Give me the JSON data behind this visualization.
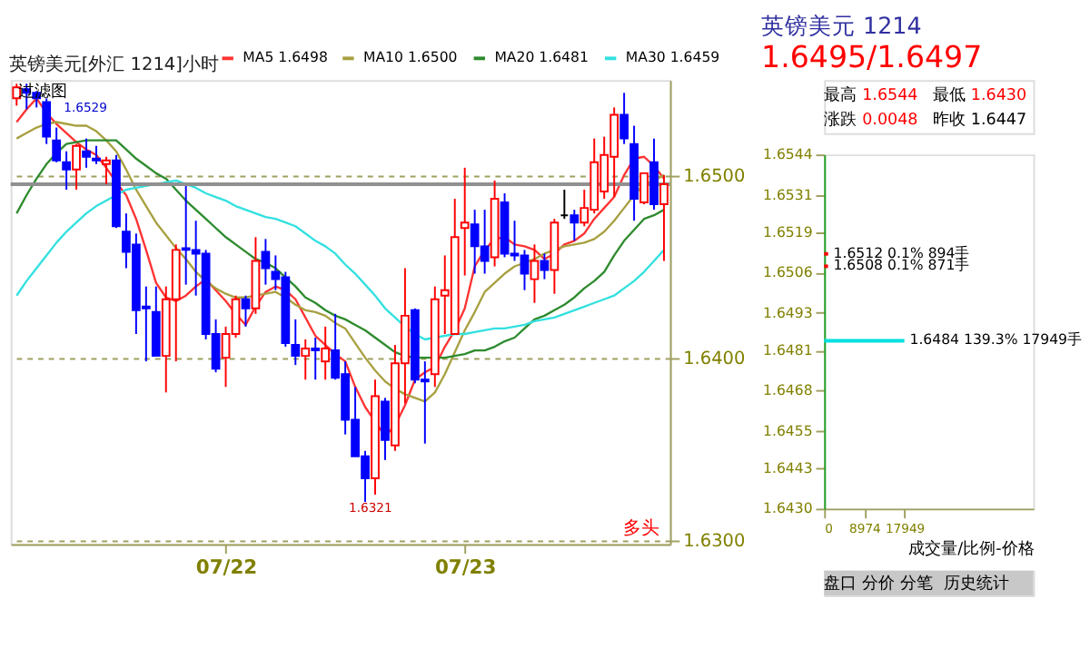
{
  "chart_data": [
    {
      "type": "candlestick",
      "title": "英镑美元[外汇 1214]小时",
      "categories": [
        null,
        null,
        null,
        null,
        null,
        null,
        null,
        null,
        null,
        null,
        null,
        null,
        null,
        null,
        null,
        null,
        null,
        null,
        null,
        null,
        null,
        "07/22",
        null,
        null,
        null,
        null,
        null,
        null,
        null,
        null,
        null,
        null,
        null,
        null,
        null,
        null,
        null,
        null,
        null,
        null,
        null,
        null,
        null,
        null,
        null,
        "07/23",
        null,
        null,
        null,
        null,
        null,
        null,
        null,
        null,
        null,
        null,
        null,
        null,
        null,
        null,
        null,
        null,
        null,
        null,
        null,
        null
      ],
      "ohlc": [
        [
          1.6542,
          1.655,
          1.6538,
          1.6548
        ],
        [
          1.6547,
          1.655,
          1.6536,
          1.6545
        ],
        [
          1.6545,
          1.6546,
          1.6537,
          1.6542
        ],
        [
          1.654,
          1.6542,
          1.6517,
          1.6521
        ],
        [
          1.6519,
          1.6526,
          1.6507,
          1.6508
        ],
        [
          1.6507,
          1.6513,
          1.6492,
          1.6503
        ],
        [
          1.6503,
          1.6517,
          1.6492,
          1.6516
        ],
        [
          1.6513,
          1.652,
          1.6504,
          1.651
        ],
        [
          1.6509,
          1.6516,
          1.6506,
          1.6508
        ],
        [
          1.6506,
          1.651,
          1.6495,
          1.6508
        ],
        [
          1.6508,
          1.6511,
          1.6471,
          1.6472
        ],
        [
          1.6469,
          1.6479,
          1.6449,
          1.6458
        ],
        [
          1.6462,
          1.6468,
          1.6413,
          1.6426
        ],
        [
          1.6428,
          1.6439,
          1.6398,
          1.6427
        ],
        [
          1.6425,
          1.6439,
          1.6401,
          1.6401
        ],
        [
          1.6401,
          1.6439,
          1.6381,
          1.6432
        ],
        [
          1.6432,
          1.6462,
          1.6398,
          1.6459
        ],
        [
          1.646,
          1.6494,
          1.644,
          1.6459
        ],
        [
          1.6459,
          1.6475,
          1.6434,
          1.6457
        ],
        [
          1.6457,
          1.6459,
          1.641,
          1.6413
        ],
        [
          1.6413,
          1.6421,
          1.6392,
          1.6394
        ],
        [
          1.64,
          1.6417,
          1.6384,
          1.6413
        ],
        [
          1.6413,
          1.6434,
          1.6411,
          1.6432
        ],
        [
          1.6432,
          1.6434,
          1.6417,
          1.6427
        ],
        [
          1.6427,
          1.6466,
          1.6424,
          1.6453
        ],
        [
          1.6458,
          1.6465,
          1.644,
          1.6449
        ],
        [
          1.6447,
          1.6456,
          1.6437,
          1.6443
        ],
        [
          1.6444,
          1.6447,
          1.6406,
          1.6408
        ],
        [
          1.6407,
          1.6421,
          1.6396,
          1.6401
        ],
        [
          1.6401,
          1.641,
          1.6388,
          1.6405
        ],
        [
          1.6405,
          1.6411,
          1.6388,
          1.6404
        ],
        [
          1.6398,
          1.6417,
          1.6388,
          1.6405
        ],
        [
          1.6404,
          1.6424,
          1.6388,
          1.6389
        ],
        [
          1.6391,
          1.6398,
          1.6358,
          1.6366
        ],
        [
          1.6366,
          1.6384,
          1.6346,
          1.6346
        ],
        [
          1.6346,
          1.6349,
          1.6321,
          1.6334
        ],
        [
          1.6334,
          1.6388,
          1.6325,
          1.6379
        ],
        [
          1.6376,
          1.6378,
          1.6344,
          1.6355
        ],
        [
          1.6352,
          1.6407,
          1.6349,
          1.6397
        ],
        [
          1.6397,
          1.6449,
          1.6375,
          1.6423
        ],
        [
          1.6426,
          1.6427,
          1.6386,
          1.6388
        ],
        [
          1.6388,
          1.6398,
          1.6353,
          1.6387
        ],
        [
          1.6391,
          1.6439,
          1.6384,
          1.6432
        ],
        [
          1.6434,
          1.6456,
          1.6413,
          1.6437
        ],
        [
          1.6413,
          1.6487,
          1.6413,
          1.6466
        ],
        [
          1.6471,
          1.6504,
          1.6445,
          1.6474
        ],
        [
          1.6473,
          1.6481,
          1.6446,
          1.6461
        ],
        [
          1.6461,
          1.6481,
          1.6446,
          1.6453
        ],
        [
          1.6455,
          1.6497,
          1.645,
          1.6487
        ],
        [
          1.6485,
          1.649,
          1.6455,
          1.6457
        ],
        [
          1.6457,
          1.6475,
          1.6453,
          1.6456
        ],
        [
          1.6456,
          1.6459,
          1.6437,
          1.6446
        ],
        [
          1.6443,
          1.6462,
          1.643,
          1.6453
        ],
        [
          1.6453,
          1.6457,
          1.6443,
          1.6448
        ],
        [
          1.6448,
          1.6476,
          1.6435,
          1.6474
        ],
        [
          1.6478,
          1.6492,
          1.6476,
          1.6478
        ],
        [
          1.6478,
          1.6481,
          1.6464,
          1.6474
        ],
        [
          1.6474,
          1.6492,
          1.6472,
          1.6482
        ],
        [
          1.6481,
          1.652,
          1.6479,
          1.6507
        ],
        [
          1.6491,
          1.6521,
          1.6487,
          1.6511
        ],
        [
          1.651,
          1.6537,
          1.6488,
          1.6533
        ],
        [
          1.6533,
          1.6545,
          1.6517,
          1.652
        ],
        [
          1.6517,
          1.6527,
          1.6475,
          1.6487
        ],
        [
          1.6485,
          1.6501,
          1.6484,
          1.6501
        ],
        [
          1.6507,
          1.652,
          1.6481,
          1.6484
        ],
        [
          1.6484,
          1.65,
          1.6453,
          1.6495
        ]
      ],
      "colors": [
        "#ff0000",
        "#0000ff",
        "#0000ff",
        "#0000ff",
        "#0000ff",
        "#0000ff",
        "#ff0000",
        "#0000ff",
        "#0000ff",
        "#ff0000",
        "#0000ff",
        "#0000ff",
        "#0000ff",
        "#0000ff",
        "#0000ff",
        "#ff0000",
        "#ff0000",
        "#0000ff",
        "#0000ff",
        "#0000ff",
        "#0000ff",
        "#ff0000",
        "#ff0000",
        "#0000ff",
        "#ff0000",
        "#0000ff",
        "#0000ff",
        "#0000ff",
        "#0000ff",
        "#ff0000",
        "#0000ff",
        "#ff0000",
        "#0000ff",
        "#0000ff",
        "#0000ff",
        "#0000ff",
        "#ff0000",
        "#0000ff",
        "#ff0000",
        "#ff0000",
        "#0000ff",
        "#0000ff",
        "#ff0000",
        "#ff0000",
        "#ff0000",
        "#ff0000",
        "#0000ff",
        "#0000ff",
        "#ff0000",
        "#0000ff",
        "#0000ff",
        "#0000ff",
        "#ff0000",
        "#0000ff",
        "#ff0000",
        "#000000",
        "#0000ff",
        "#ff0000",
        "#ff0000",
        "#ff0000",
        "#ff0000",
        "#0000ff",
        "#0000ff",
        "#ff0000",
        "#0000ff",
        "#ff0000"
      ],
      "series": [
        {
          "name": "MA5 1.6498",
          "type": "line",
          "color": "#ff3333",
          "values": [
            1.6529,
            1.6536,
            1.6542,
            1.6534,
            1.6528,
            1.6523,
            1.6518,
            1.6514,
            1.6511,
            1.6504,
            1.6496,
            1.6489,
            1.6476,
            1.6459,
            1.6441,
            1.6433,
            1.6431,
            1.6434,
            1.6439,
            1.6443,
            1.6437,
            1.6431,
            1.6424,
            1.6418,
            1.6428,
            1.6436,
            1.6439,
            1.6437,
            1.6432,
            1.6422,
            1.6412,
            1.6407,
            1.6402,
            1.6398,
            1.6384,
            1.6373,
            1.6365,
            1.6357,
            1.6363,
            1.6374,
            1.6388,
            1.6392,
            1.6395,
            1.6406,
            1.6415,
            1.6427,
            1.645,
            1.6459,
            1.6465,
            1.6466,
            1.6462,
            1.6461,
            1.6459,
            1.6454,
            1.6457,
            1.6462,
            1.6464,
            1.6468,
            1.6476,
            1.6482,
            1.6488,
            1.65,
            1.6509,
            1.651,
            1.6505,
            1.6498
          ]
        },
        {
          "name": "MA10 1.6500",
          "type": "line",
          "color": "#a8a040",
          "values": [
            1.652,
            1.6523,
            1.6526,
            1.6528,
            1.6529,
            1.6528,
            1.6527,
            1.6527,
            1.6524,
            1.6519,
            1.6513,
            1.6503,
            1.6492,
            1.6483,
            1.6474,
            1.6467,
            1.646,
            1.6454,
            1.6447,
            1.6442,
            1.6438,
            1.6435,
            1.6433,
            1.6433,
            1.6434,
            1.6435,
            1.6436,
            1.6433,
            1.6429,
            1.6426,
            1.6425,
            1.6423,
            1.6419,
            1.6416,
            1.6408,
            1.64,
            1.6393,
            1.6387,
            1.6383,
            1.638,
            1.6378,
            1.6376,
            1.6381,
            1.6391,
            1.6403,
            1.6415,
            1.6425,
            1.6436,
            1.6441,
            1.6446,
            1.645,
            1.6452,
            1.6454,
            1.6457,
            1.6459,
            1.6461,
            1.6462,
            1.6463,
            1.6465,
            1.6469,
            1.6475,
            1.6482,
            1.6489,
            1.6495,
            1.6497,
            1.65
          ]
        },
        {
          "name": "MA20 1.6481",
          "type": "line",
          "color": "#2e8b2e",
          "values": [
            1.6479,
            1.6489,
            1.6498,
            1.6506,
            1.6512,
            1.6517,
            1.6518,
            1.6519,
            1.6519,
            1.6519,
            1.6519,
            1.6514,
            1.6509,
            1.6505,
            1.6501,
            1.6498,
            1.6492,
            1.6486,
            1.6481,
            1.6476,
            1.6471,
            1.6466,
            1.6462,
            1.6458,
            1.6454,
            1.6452,
            1.6449,
            1.6444,
            1.6439,
            1.6433,
            1.643,
            1.6426,
            1.6423,
            1.6421,
            1.6418,
            1.6415,
            1.6411,
            1.6407,
            1.6403,
            1.6401,
            1.64,
            1.64,
            1.64,
            1.64,
            1.6401,
            1.6402,
            1.6404,
            1.6404,
            1.6406,
            1.6409,
            1.6411,
            1.6416,
            1.6421,
            1.6423,
            1.6426,
            1.6429,
            1.6433,
            1.6438,
            1.6442,
            1.6447,
            1.6456,
            1.6464,
            1.647,
            1.6476,
            1.6478,
            1.6481
          ]
        },
        {
          "name": "MA30 1.6459",
          "type": "line",
          "color": "#33e0e0",
          "values": [
            1.6434,
            1.6442,
            1.6449,
            1.6456,
            1.6463,
            1.6469,
            1.6474,
            1.6479,
            1.6483,
            1.6486,
            1.6489,
            1.6492,
            1.6493,
            1.6494,
            1.6495,
            1.6496,
            1.6497,
            1.6495,
            1.6493,
            1.649,
            1.6488,
            1.6486,
            1.6483,
            1.6481,
            1.6479,
            1.6477,
            1.6476,
            1.6474,
            1.6472,
            1.6468,
            1.6464,
            1.6461,
            1.6457,
            1.6451,
            1.6446,
            1.644,
            1.6434,
            1.6427,
            1.6422,
            1.6417,
            1.6413,
            1.641,
            1.6411,
            1.6412,
            1.6413,
            1.6413,
            1.6414,
            1.6415,
            1.6416,
            1.6416,
            1.6417,
            1.6418,
            1.642,
            1.6421,
            1.6422,
            1.6424,
            1.6426,
            1.6428,
            1.643,
            1.6432,
            1.6434,
            1.6438,
            1.6442,
            1.6447,
            1.6453,
            1.6459
          ]
        }
      ],
      "ylim": [
        1.6298,
        1.6552
      ],
      "yticks": [
        {
          "value": 1.63,
          "label": "1.6300"
        },
        {
          "value": 1.64,
          "label": "1.6400"
        },
        {
          "value": 1.65,
          "label": "1.6500"
        }
      ],
      "grid": "y",
      "legend": "top",
      "line_style": "solid",
      "ref_lines": [
        {
          "axis": "y",
          "value": 1.6495,
          "color": "#909090"
        }
      ],
      "annotations": [
        "过滤图",
        "多头",
        "1.6529",
        "1.6321"
      ]
    },
    {
      "type": "bar",
      "orientation": "horizontal",
      "title": "英镑美元 1214",
      "subtitle": "1.6495/1.6497",
      "x": [
        1.6512,
        1.6508,
        1.6484
      ],
      "values": [
        894,
        871,
        17949
      ],
      "colors": [
        "#ff0000",
        "#ff0000",
        "#00e0e0"
      ],
      "value_labels": [
        "1.6512 0.1% 894手",
        "1.6508 0.1% 871手",
        "1.6484 139.3% 17949手"
      ],
      "xlim": [
        0,
        46800
      ],
      "xticks": [
        0,
        8974,
        17949
      ],
      "ylim": [
        1.643,
        1.6544
      ],
      "yticks": [
        {
          "value": 1.643,
          "label": "1.6430"
        },
        {
          "value": 1.6443,
          "label": "1.6443"
        },
        {
          "value": 1.6455,
          "label": "1.6455"
        },
        {
          "value": 1.6468,
          "label": "1.6468"
        },
        {
          "value": 1.6481,
          "label": "1.6481"
        },
        {
          "value": 1.6493,
          "label": "1.6493"
        },
        {
          "value": 1.6506,
          "label": "1.6506"
        },
        {
          "value": 1.6519,
          "label": "1.6519"
        },
        {
          "value": 1.6531,
          "label": "1.6531"
        },
        {
          "value": 1.6544,
          "label": "1.6544"
        }
      ],
      "xlabel": "成交量/比例-价格",
      "annotations": [
        "最高",
        "1.6544",
        "最低",
        "1.6430",
        "涨跌",
        "0.0048",
        "昨收",
        "1.6447",
        "盘口",
        "分价",
        "分笔",
        "历史统计"
      ]
    }
  ]
}
